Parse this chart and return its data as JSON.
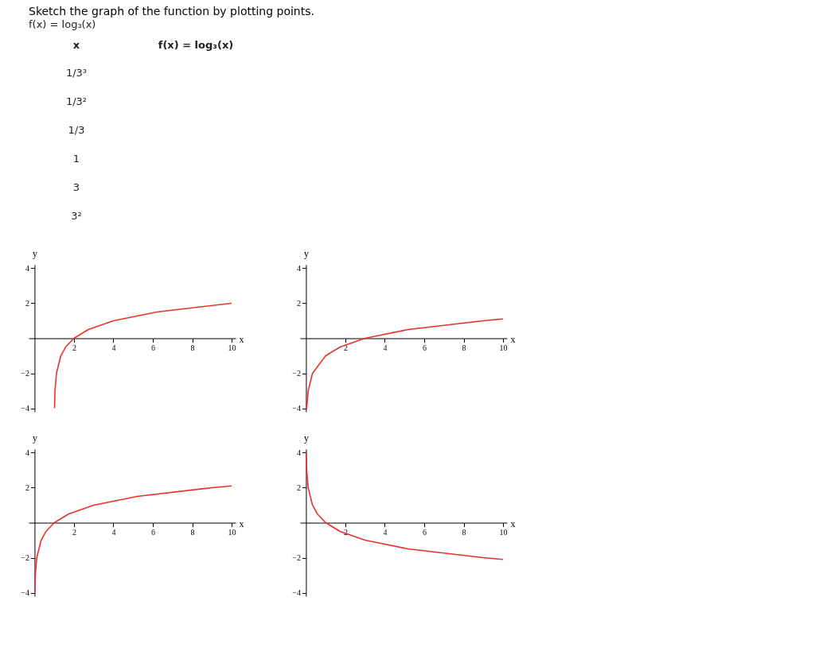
{
  "chart_data": [
    {
      "type": "other",
      "title": "Sketch the graph of the function by plotting points.",
      "subtitle": "f(x) = log₃(x)",
      "annotations": [
        "x",
        "f(x) = log₃(x)",
        "1/3³",
        "1/3²",
        "1/3",
        "1",
        "3",
        "3²"
      ]
    },
    {
      "type": "line",
      "xlabel": "x",
      "ylabel": "y",
      "xlim": [
        -0.3,
        10.2
      ],
      "ylim": [
        -4.2,
        4.2
      ],
      "xticks": [
        2,
        4,
        6,
        8,
        10
      ],
      "yticks": [
        -4,
        -2,
        2,
        4
      ],
      "grid": false,
      "marker": "none",
      "line_style": "solid",
      "x": [
        1.0123,
        1.037,
        1.111,
        1.333,
        1.577,
        2,
        2.732,
        4,
        6.196,
        10
      ],
      "series": [
        {
          "color": "#e8322a",
          "values": [
            -4,
            -3,
            -2,
            -1,
            -0.5,
            0,
            0.5,
            1,
            1.5,
            2
          ]
        }
      ]
    },
    {
      "type": "line",
      "xlabel": "x",
      "ylabel": "y",
      "xlim": [
        -0.3,
        10.2
      ],
      "ylim": [
        -4.2,
        4.2
      ],
      "xticks": [
        2,
        4,
        6,
        8,
        10
      ],
      "yticks": [
        -4,
        -2,
        2,
        4
      ],
      "grid": false,
      "marker": "none",
      "line_style": "solid",
      "x": [
        0.037,
        0.111,
        0.333,
        1,
        1.732,
        3,
        5.196,
        9,
        10
      ],
      "series": [
        {
          "color": "#e8322a",
          "values": [
            -4,
            -3,
            -2,
            -1,
            -0.5,
            0,
            0.5,
            1,
            1.1
          ]
        }
      ]
    },
    {
      "type": "line",
      "xlabel": "x",
      "ylabel": "y",
      "xlim": [
        -0.3,
        10.2
      ],
      "ylim": [
        -4.2,
        4.2
      ],
      "xticks": [
        2,
        4,
        6,
        8,
        10
      ],
      "yticks": [
        -4,
        -2,
        2,
        4
      ],
      "grid": false,
      "marker": "none",
      "line_style": "solid",
      "x": [
        0.0123,
        0.037,
        0.111,
        0.333,
        0.577,
        1,
        1.732,
        3,
        5.196,
        9,
        10
      ],
      "series": [
        {
          "color": "#e8322a",
          "values": [
            -4,
            -3,
            -2,
            -1,
            -0.5,
            0,
            0.5,
            1,
            1.5,
            2,
            2.1
          ]
        }
      ]
    },
    {
      "type": "line",
      "xlabel": "x",
      "ylabel": "y",
      "xlim": [
        -0.3,
        10.2
      ],
      "ylim": [
        -4.2,
        4.2
      ],
      "xticks": [
        2,
        4,
        6,
        8,
        10
      ],
      "yticks": [
        -4,
        -2,
        2,
        4
      ],
      "grid": false,
      "marker": "none",
      "line_style": "solid",
      "x": [
        0.0123,
        0.037,
        0.111,
        0.333,
        0.577,
        1,
        1.732,
        3,
        5.196,
        9,
        10
      ],
      "series": [
        {
          "color": "#e8322a",
          "values": [
            4,
            3,
            2,
            1,
            0.5,
            0,
            -0.5,
            -1,
            -1.5,
            -2,
            -2.1
          ]
        }
      ]
    }
  ]
}
